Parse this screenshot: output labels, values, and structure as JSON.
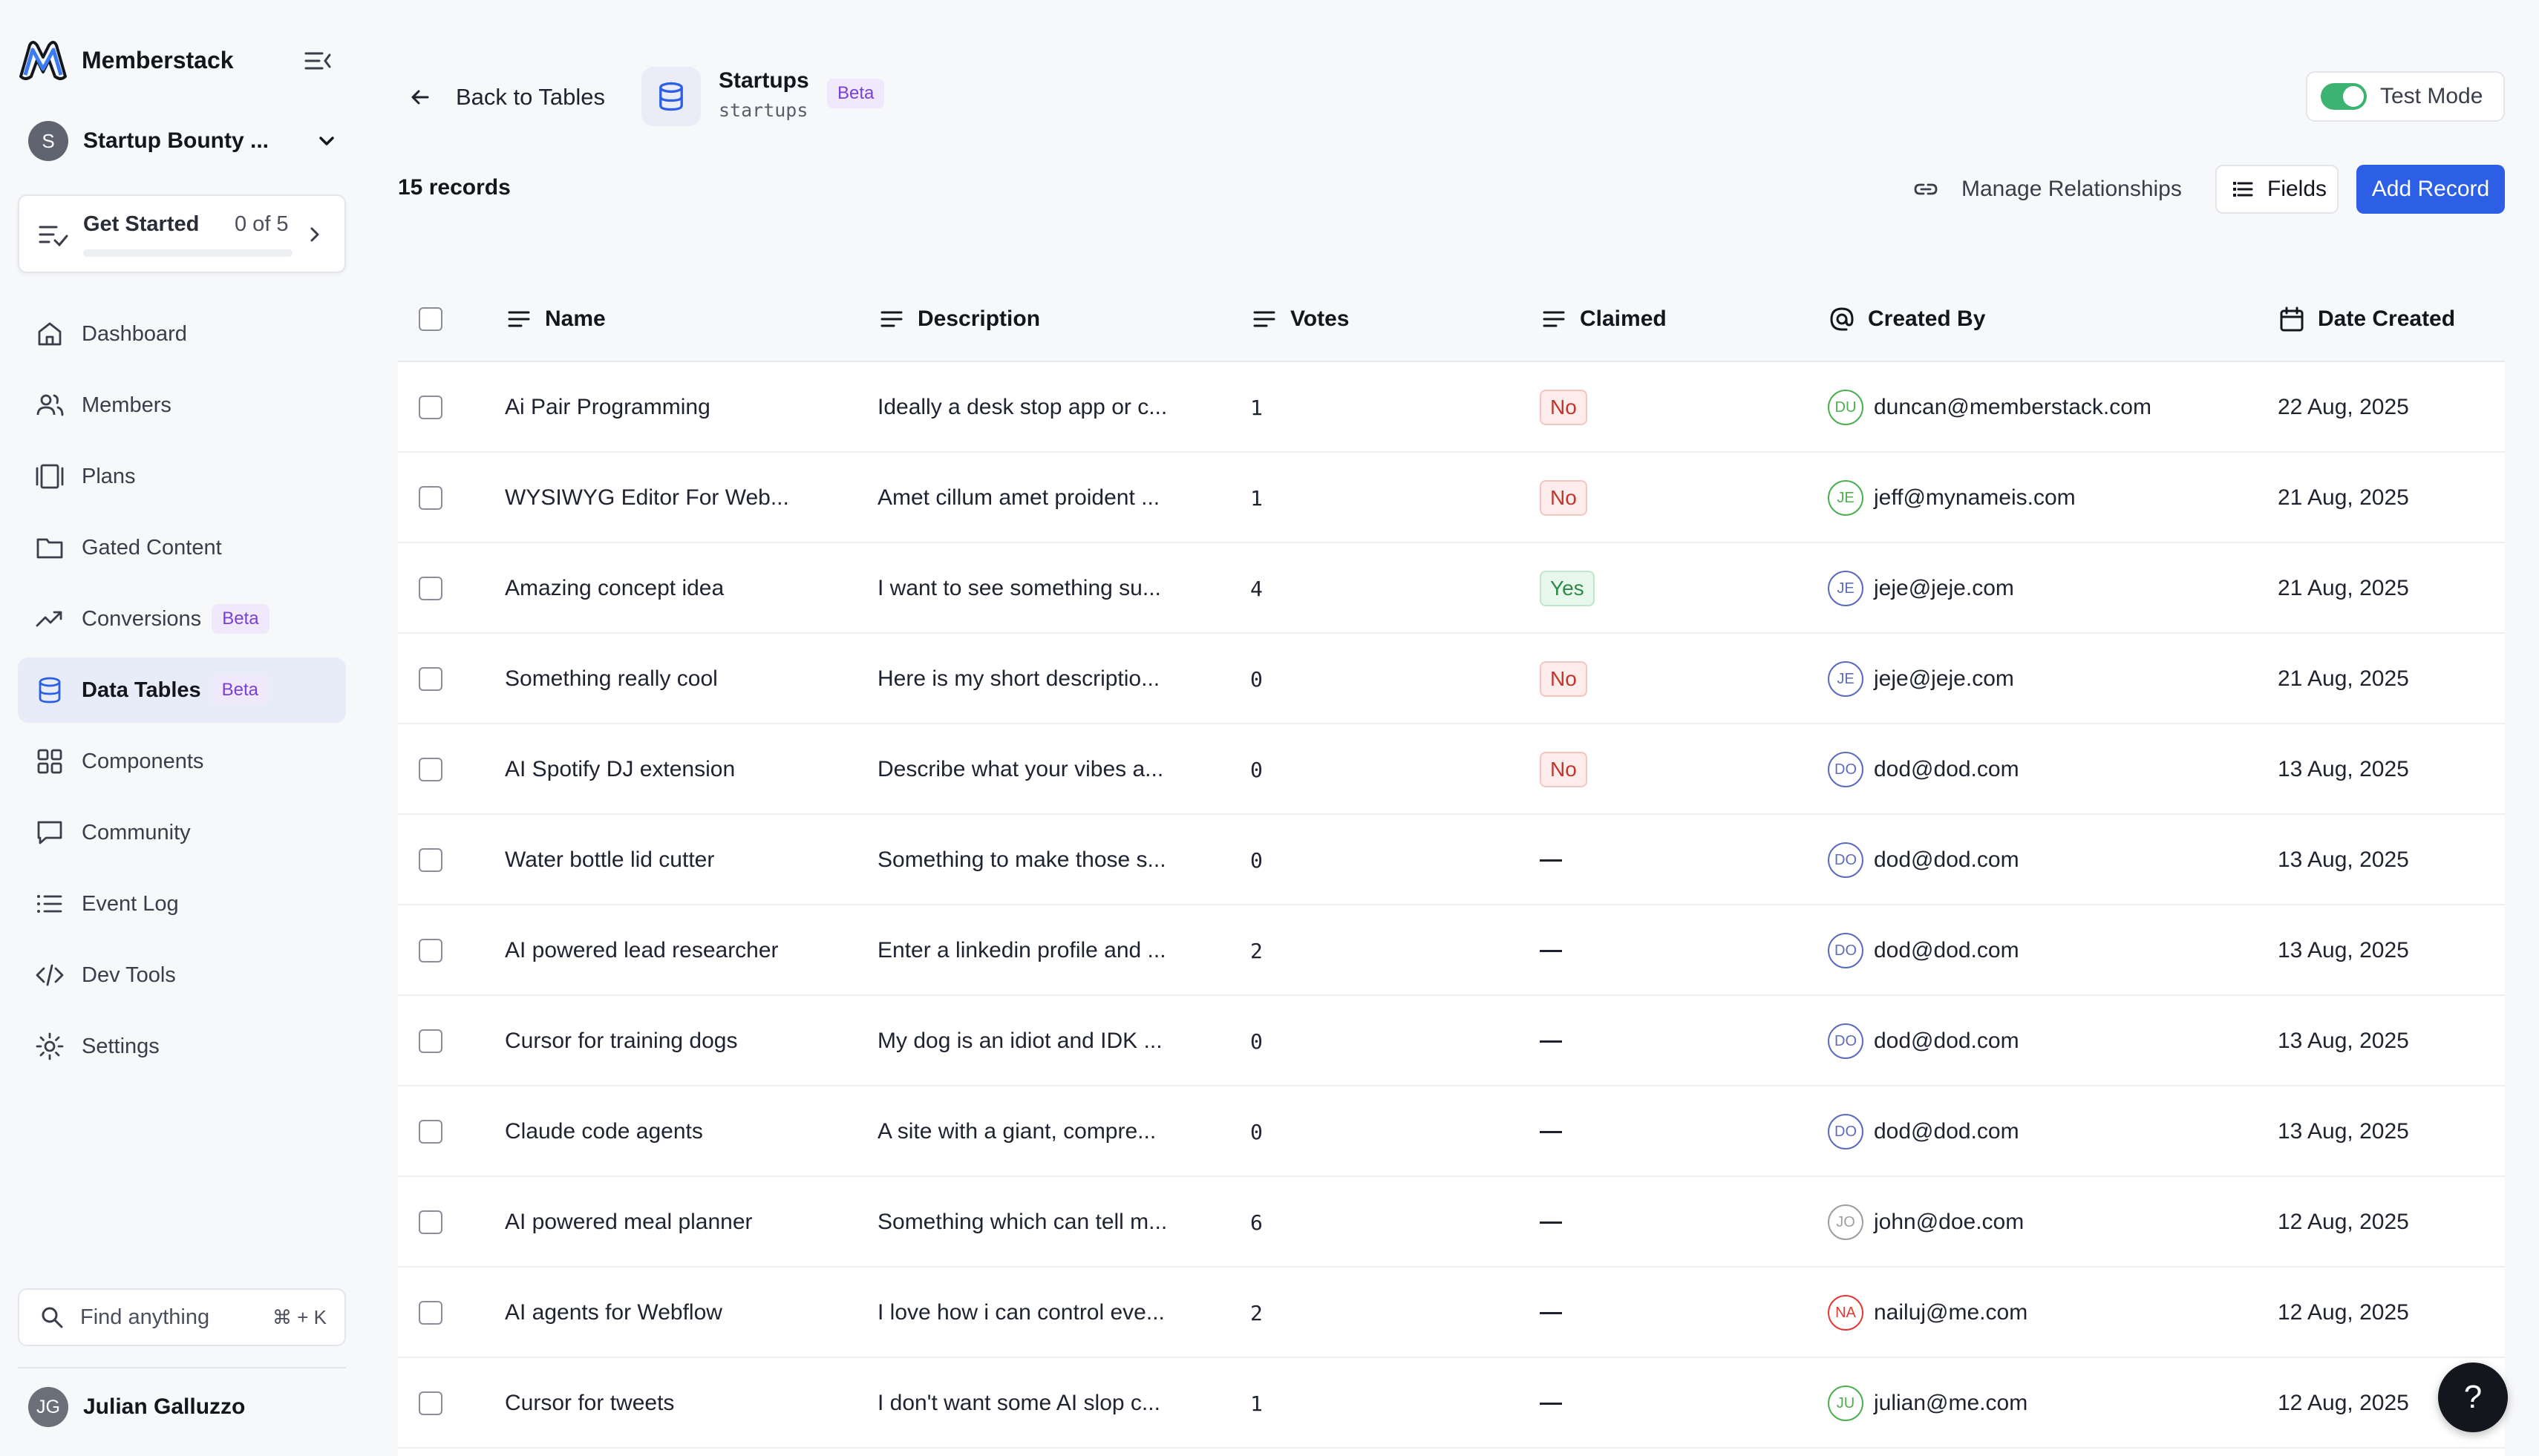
{
  "brand": {
    "name": "Memberstack",
    "accent": "#2c5fe6"
  },
  "workspace": {
    "initial": "S",
    "name": "Startup Bounty ..."
  },
  "get_started": {
    "title": "Get Started",
    "count": "0 of 5",
    "progress": 0
  },
  "nav": [
    {
      "label": "Dashboard",
      "icon": "home-icon"
    },
    {
      "label": "Members",
      "icon": "users-icon"
    },
    {
      "label": "Plans",
      "icon": "plans-icon"
    },
    {
      "label": "Gated Content",
      "icon": "folder-icon"
    },
    {
      "label": "Conversions",
      "icon": "trend-icon",
      "badge": "Beta"
    },
    {
      "label": "Data Tables",
      "icon": "database-icon",
      "badge": "Beta",
      "active": true
    },
    {
      "label": "Components",
      "icon": "grid-icon"
    },
    {
      "label": "Community",
      "icon": "chat-icon"
    },
    {
      "label": "Event Log",
      "icon": "list-icon"
    },
    {
      "label": "Dev Tools",
      "icon": "code-icon"
    },
    {
      "label": "Settings",
      "icon": "gear-icon"
    }
  ],
  "search": {
    "label": "Find anything",
    "shortcut": "⌘ + K"
  },
  "user": {
    "initials": "JG",
    "name": "Julian Galluzzo"
  },
  "header": {
    "back_label": "Back to Tables",
    "table_name": "Startups",
    "table_slug": "startups",
    "badge": "Beta",
    "test_mode_label": "Test Mode",
    "test_mode_on": true
  },
  "toolbar": {
    "records_count": "15 records",
    "manage_label": "Manage Relationships",
    "fields_label": "Fields",
    "add_label": "Add Record"
  },
  "columns": [
    "Name",
    "Description",
    "Votes",
    "Claimed",
    "Created By",
    "Date Created"
  ],
  "rows": [
    {
      "name": "Ai Pair Programming",
      "description": "Ideally a desk stop app or c...",
      "votes": "1",
      "claimed": "No",
      "initials": "DU",
      "avatar_color": "#4caf50",
      "created_by": "duncan@memberstack.com",
      "date": "22 Aug, 2025"
    },
    {
      "name": "WYSIWYG Editor For Web...",
      "description": "Amet cillum amet proident ...",
      "votes": "1",
      "claimed": "No",
      "initials": "JE",
      "avatar_color": "#4caf50",
      "created_by": "jeff@mynameis.com",
      "date": "21 Aug, 2025"
    },
    {
      "name": "Amazing concept idea",
      "description": "I want to see something su...",
      "votes": "4",
      "claimed": "Yes",
      "initials": "JE",
      "avatar_color": "#5c6bc0",
      "created_by": "jeje@jeje.com",
      "date": "21 Aug, 2025"
    },
    {
      "name": "Something really cool",
      "description": "Here is my short descriptio...",
      "votes": "0",
      "claimed": "No",
      "initials": "JE",
      "avatar_color": "#5c6bc0",
      "created_by": "jeje@jeje.com",
      "date": "21 Aug, 2025"
    },
    {
      "name": "AI Spotify DJ extension",
      "description": "Describe what your vibes a...",
      "votes": "0",
      "claimed": "No",
      "initials": "DO",
      "avatar_color": "#5c6bc0",
      "created_by": "dod@dod.com",
      "date": "13 Aug, 2025"
    },
    {
      "name": "Water bottle lid cutter",
      "description": "Something to make those s...",
      "votes": "0",
      "claimed": "",
      "initials": "DO",
      "avatar_color": "#5c6bc0",
      "created_by": "dod@dod.com",
      "date": "13 Aug, 2025"
    },
    {
      "name": "AI powered lead researcher",
      "description": "Enter a linkedin profile and ...",
      "votes": "2",
      "claimed": "",
      "initials": "DO",
      "avatar_color": "#5c6bc0",
      "created_by": "dod@dod.com",
      "date": "13 Aug, 2025"
    },
    {
      "name": "Cursor for training dogs",
      "description": "My dog is an idiot and IDK ...",
      "votes": "0",
      "claimed": "",
      "initials": "DO",
      "avatar_color": "#5c6bc0",
      "created_by": "dod@dod.com",
      "date": "13 Aug, 2025"
    },
    {
      "name": "Claude code agents",
      "description": "A site with a giant, compre...",
      "votes": "0",
      "claimed": "",
      "initials": "DO",
      "avatar_color": "#5c6bc0",
      "created_by": "dod@dod.com",
      "date": "13 Aug, 2025"
    },
    {
      "name": "AI powered meal planner",
      "description": "Something which can tell m...",
      "votes": "6",
      "claimed": "",
      "initials": "JO",
      "avatar_color": "#9e9e9e",
      "created_by": "john@doe.com",
      "date": "12 Aug, 2025"
    },
    {
      "name": "AI agents for Webflow",
      "description": "I love how i can control eve...",
      "votes": "2",
      "claimed": "",
      "initials": "NA",
      "avatar_color": "#e53935",
      "created_by": "nailuj@me.com",
      "date": "12 Aug, 2025"
    },
    {
      "name": "Cursor for tweets",
      "description": "I don't want some AI slop c...",
      "votes": "1",
      "claimed": "",
      "initials": "JU",
      "avatar_color": "#4caf50",
      "created_by": "julian@me.com",
      "date": "12 Aug, 2025"
    }
  ],
  "help_label": "?"
}
